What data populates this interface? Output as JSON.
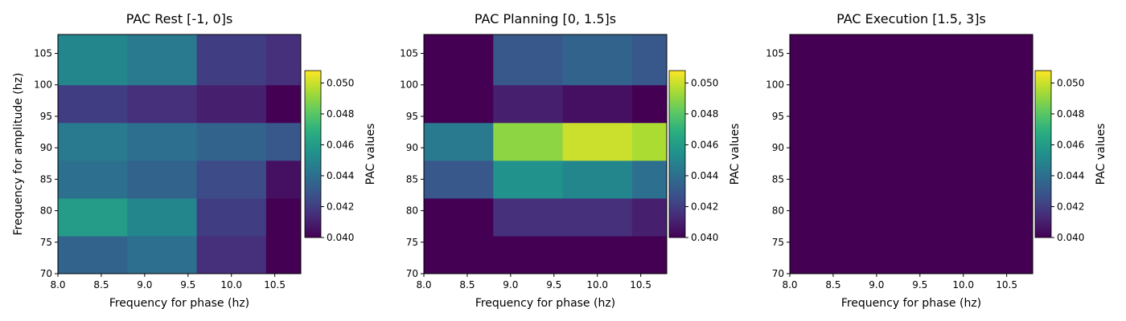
{
  "chart_data": [
    {
      "type": "heatmap",
      "title": "PAC Rest [-1, 0]s",
      "xlabel": "Frequency for phase (hz)",
      "ylabel": "Frequency for amplitude (hz)",
      "xlim": [
        8.0,
        10.8
      ],
      "ylim": [
        70,
        108
      ],
      "xticks": [
        "8.0",
        "8.5",
        "9.0",
        "9.5",
        "10.0",
        "10.5"
      ],
      "yticks": [
        "70",
        "75",
        "80",
        "85",
        "90",
        "95",
        "100",
        "105"
      ],
      "x_edges": [
        8.0,
        8.8,
        9.6,
        10.4,
        10.8
      ],
      "y_edges": [
        70,
        76,
        82,
        88,
        94,
        100,
        108
      ],
      "z": [
        [
          0.0435,
          0.044,
          0.0415,
          0.04
        ],
        [
          0.046,
          0.045,
          0.042,
          0.04
        ],
        [
          0.044,
          0.0435,
          0.0425,
          0.0405
        ],
        [
          0.0445,
          0.044,
          0.0435,
          0.043
        ],
        [
          0.042,
          0.0415,
          0.041,
          0.04
        ],
        [
          0.045,
          0.0445,
          0.042,
          0.0415
        ]
      ],
      "colorbar": {
        "label": "PAC values",
        "vmin": 0.04,
        "vmax": 0.0508,
        "ticks": [
          "0.040",
          "0.042",
          "0.044",
          "0.046",
          "0.048",
          "0.050"
        ]
      }
    },
    {
      "type": "heatmap",
      "title": "PAC Planning [0, 1.5]s",
      "xlabel": "Frequency for phase (hz)",
      "ylabel": "",
      "xlim": [
        8.0,
        10.8
      ],
      "ylim": [
        70,
        108
      ],
      "xticks": [
        "8.0",
        "8.5",
        "9.0",
        "9.5",
        "10.0",
        "10.5"
      ],
      "yticks": [
        "70",
        "75",
        "80",
        "85",
        "90",
        "95",
        "100",
        "105"
      ],
      "x_edges": [
        8.0,
        8.8,
        9.6,
        10.4,
        10.8
      ],
      "y_edges": [
        70,
        76,
        82,
        88,
        94,
        100,
        108
      ],
      "z": [
        [
          0.04,
          0.04,
          0.04,
          0.04
        ],
        [
          0.04,
          0.0415,
          0.0415,
          0.041
        ],
        [
          0.043,
          0.0455,
          0.045,
          0.044
        ],
        [
          0.0445,
          0.049,
          0.05,
          0.0495
        ],
        [
          0.04,
          0.041,
          0.0405,
          0.04
        ],
        [
          0.04,
          0.043,
          0.0435,
          0.043
        ]
      ],
      "colorbar": {
        "label": "PAC values",
        "vmin": 0.04,
        "vmax": 0.0508,
        "ticks": [
          "0.040",
          "0.042",
          "0.044",
          "0.046",
          "0.048",
          "0.050"
        ]
      }
    },
    {
      "type": "heatmap",
      "title": "PAC Execution [1.5, 3]s",
      "xlabel": "Frequency for phase (hz)",
      "ylabel": "",
      "xlim": [
        8.0,
        10.8
      ],
      "ylim": [
        70,
        108
      ],
      "xticks": [
        "8.0",
        "8.5",
        "9.0",
        "9.5",
        "10.0",
        "10.5"
      ],
      "yticks": [
        "70",
        "75",
        "80",
        "85",
        "90",
        "95",
        "100",
        "105"
      ],
      "x_edges": [
        8.0,
        10.8
      ],
      "y_edges": [
        70,
        108
      ],
      "z": [
        [
          0.04
        ]
      ],
      "colorbar": {
        "label": "PAC values",
        "vmin": 0.04,
        "vmax": 0.0508,
        "ticks": [
          "0.040",
          "0.042",
          "0.044",
          "0.046",
          "0.048",
          "0.050"
        ]
      }
    }
  ]
}
